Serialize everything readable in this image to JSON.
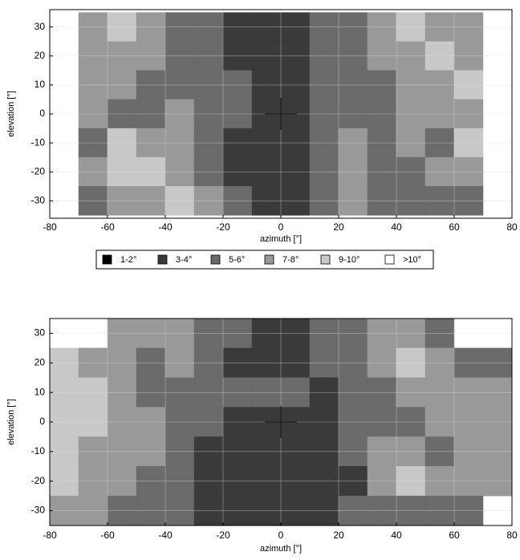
{
  "chart_data": [
    {
      "type": "heatmap",
      "xlabel": "azimuth [°]",
      "ylabel": "elevation [°]",
      "x": [
        -75,
        -65,
        -55,
        -45,
        -35,
        -25,
        -15,
        -5,
        5,
        15,
        25,
        35,
        45,
        55,
        65,
        75
      ],
      "y": [
        30,
        20,
        10,
        0,
        -10,
        -20,
        -30
      ],
      "values": [
        [
          null,
          3,
          4,
          3,
          2,
          2,
          1,
          1,
          1,
          2,
          2,
          3,
          4,
          3,
          3,
          null
        ],
        [
          null,
          3,
          3,
          3,
          2,
          2,
          1,
          1,
          1,
          2,
          2,
          3,
          3,
          4,
          3,
          null
        ],
        [
          null,
          3,
          3,
          2,
          2,
          2,
          2,
          1,
          1,
          2,
          2,
          2,
          3,
          3,
          4,
          null
        ],
        [
          null,
          3,
          2,
          2,
          3,
          2,
          2,
          1,
          1,
          2,
          2,
          2,
          3,
          3,
          3,
          null
        ],
        [
          null,
          2,
          4,
          3,
          3,
          2,
          1,
          1,
          1,
          2,
          3,
          2,
          3,
          2,
          4,
          null
        ],
        [
          null,
          3,
          4,
          4,
          3,
          2,
          1,
          1,
          1,
          2,
          3,
          2,
          2,
          3,
          3,
          null
        ],
        [
          null,
          2,
          3,
          3,
          4,
          3,
          2,
          1,
          1,
          2,
          3,
          2,
          2,
          2,
          2,
          null
        ]
      ],
      "xlim": [
        -80,
        80
      ],
      "xticks": [
        -80,
        -60,
        -40,
        -20,
        0,
        20,
        40,
        60,
        80
      ],
      "ylim": [
        -36,
        36
      ],
      "yticks": [
        -30,
        -20,
        -10,
        0,
        10,
        20,
        30
      ],
      "grid": true
    },
    {
      "type": "heatmap",
      "xlabel": "azimuth [°]",
      "ylabel": "elevation [°]",
      "x": [
        -75,
        -65,
        -55,
        -45,
        -35,
        -25,
        -15,
        -5,
        5,
        15,
        25,
        35,
        45,
        55,
        65,
        75
      ],
      "y": [
        30,
        20,
        10,
        0,
        -10,
        -20,
        -30
      ],
      "values": [
        [
          null,
          null,
          3,
          3,
          3,
          2,
          2,
          1,
          1,
          2,
          2,
          3,
          3,
          2,
          null,
          null
        ],
        [
          4,
          3,
          3,
          2,
          3,
          2,
          1,
          1,
          1,
          2,
          2,
          3,
          4,
          3,
          2,
          2
        ],
        [
          4,
          4,
          3,
          2,
          2,
          2,
          2,
          2,
          2,
          1,
          2,
          2,
          3,
          3,
          3,
          3
        ],
        [
          4,
          4,
          3,
          3,
          2,
          2,
          1,
          1,
          1,
          1,
          2,
          2,
          2,
          3,
          3,
          3
        ],
        [
          4,
          3,
          3,
          3,
          2,
          1,
          1,
          1,
          1,
          1,
          2,
          3,
          3,
          2,
          3,
          3
        ],
        [
          4,
          3,
          3,
          2,
          2,
          1,
          1,
          1,
          1,
          1,
          1,
          3,
          4,
          3,
          3,
          3
        ],
        [
          3,
          3,
          2,
          2,
          2,
          1,
          1,
          1,
          1,
          1,
          2,
          2,
          2,
          2,
          2,
          null
        ]
      ],
      "xlim": [
        -80,
        80
      ],
      "xticks": [
        -80,
        -60,
        -40,
        -20,
        0,
        20,
        40,
        60,
        80
      ],
      "ylim": [
        -35,
        35
      ],
      "yticks": [
        -30,
        -20,
        -10,
        0,
        10,
        20,
        30
      ],
      "grid": true
    }
  ],
  "legend": {
    "labels": [
      "1-2°",
      "3-4°",
      "5-6°",
      "7-8°",
      "9-10°",
      ">10°"
    ],
    "colors": [
      "#000000",
      "#3a3a3a",
      "#6b6b6b",
      "#999999",
      "#c8c8c8",
      "#ffffff"
    ]
  }
}
